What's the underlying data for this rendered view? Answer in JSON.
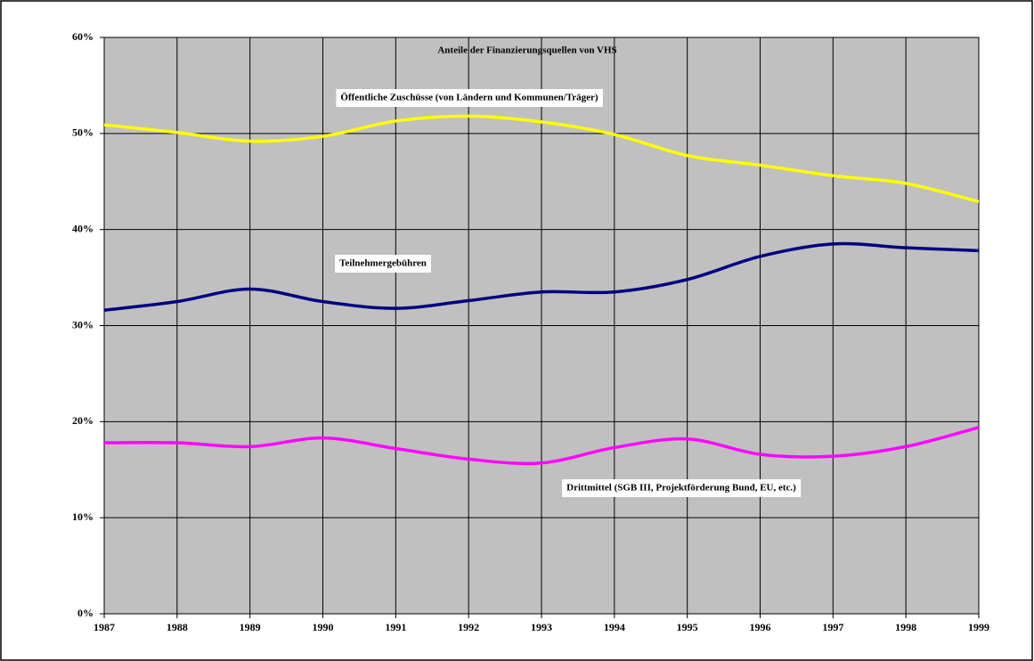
{
  "chart_data": {
    "type": "line",
    "title": "Anteile der Finanzierungsquellen von VHS",
    "categories": [
      "1987",
      "1988",
      "1989",
      "1990",
      "1991",
      "1992",
      "1993",
      "1994",
      "1995",
      "1996",
      "1997",
      "1998",
      "1999"
    ],
    "series": [
      {
        "name": "Öffentliche Zuschüsse (von Ländern und Kommunen/Träger)",
        "color": "#ffff00",
        "values": [
          50.9,
          50.1,
          49.2,
          49.7,
          51.3,
          51.8,
          51.2,
          49.9,
          47.7,
          46.7,
          45.6,
          44.8,
          42.9
        ]
      },
      {
        "name": "Teilnehmergebühren",
        "color": "#000080",
        "values": [
          31.6,
          32.5,
          33.8,
          32.5,
          31.8,
          32.6,
          33.5,
          33.5,
          34.8,
          37.2,
          38.5,
          38.1,
          37.8
        ]
      },
      {
        "name": "Drittmittel (SGB III, Projektförderung Bund, EU, etc.)",
        "color": "#ff00ff",
        "values": [
          17.8,
          17.8,
          17.4,
          18.3,
          17.2,
          16.1,
          15.7,
          17.3,
          18.2,
          16.6,
          16.4,
          17.4,
          19.4
        ]
      }
    ],
    "ylim": [
      0,
      60
    ],
    "yticks": [
      {
        "value": 0,
        "label": "0%"
      },
      {
        "value": 10,
        "label": "10%"
      },
      {
        "value": 20,
        "label": "20%"
      },
      {
        "value": 30,
        "label": "30%"
      },
      {
        "value": 40,
        "label": "40%"
      },
      {
        "value": 50,
        "label": "50%"
      },
      {
        "value": 60,
        "label": "60%"
      }
    ],
    "grid": true
  }
}
